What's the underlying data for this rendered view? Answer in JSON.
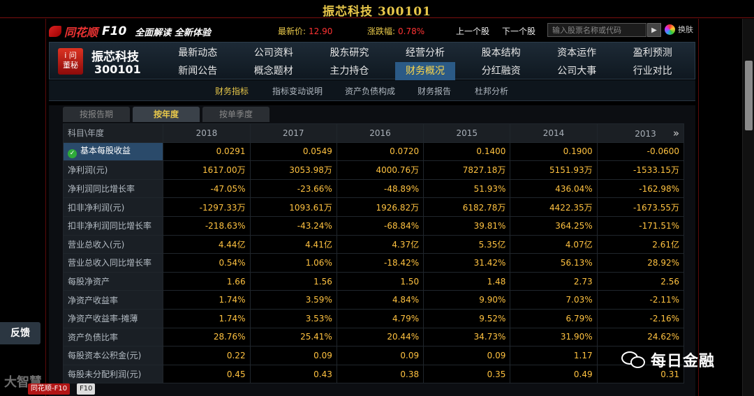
{
  "window": {
    "title": "振芯科技 300101"
  },
  "header": {
    "brand": "同花顺",
    "f10": "F10",
    "slogan": "全面解读 全新体验",
    "price_label": "最新价:",
    "price_value": "12.90",
    "change_label": "涨跌幅:",
    "change_value": "0.78%",
    "prev_stock": "上一个股",
    "next_stock": "下一个股",
    "search_placeholder": "输入股票名称或代码",
    "search_go": "▶",
    "skin_label": "换肤"
  },
  "stock": {
    "badge_line1": "i 问",
    "badge_line2": "董秘",
    "name": "振芯科技",
    "code": "300101"
  },
  "nav": {
    "row1": [
      "最新动态",
      "公司资料",
      "股东研究",
      "经营分析",
      "股本结构",
      "资本运作",
      "盈利预测"
    ],
    "row2": [
      "新闻公告",
      "概念题材",
      "主力持仓",
      "财务概况",
      "分红融资",
      "公司大事",
      "行业对比"
    ],
    "active": "财务概况"
  },
  "subnav": {
    "items": [
      "财务指标",
      "指标变动说明",
      "资产负债构成",
      "财务报告",
      "杜邦分析"
    ],
    "active": "财务指标"
  },
  "tabs": {
    "items": [
      "按报告期",
      "按年度",
      "按单季度"
    ],
    "active": "按年度"
  },
  "table": {
    "corner": "科目\\年度",
    "more": "»",
    "years": [
      "2018",
      "2017",
      "2016",
      "2015",
      "2014",
      "2013"
    ],
    "rows": [
      {
        "label": "基本每股收益",
        "values": [
          "0.0291",
          "0.0549",
          "0.0720",
          "0.1400",
          "0.1900",
          "-0.0600"
        ]
      },
      {
        "label": "净利润(元)",
        "values": [
          "1617.00万",
          "3053.98万",
          "4000.76万",
          "7827.18万",
          "5151.93万",
          "-1533.15万"
        ]
      },
      {
        "label": "净利润同比增长率",
        "values": [
          "-47.05%",
          "-23.66%",
          "-48.89%",
          "51.93%",
          "436.04%",
          "-162.98%"
        ]
      },
      {
        "label": "扣非净利润(元)",
        "values": [
          "-1297.33万",
          "1093.61万",
          "1926.82万",
          "6182.78万",
          "4422.35万",
          "-1673.55万"
        ]
      },
      {
        "label": "扣非净利润同比增长率",
        "values": [
          "-218.63%",
          "-43.24%",
          "-68.84%",
          "39.81%",
          "364.25%",
          "-171.51%"
        ]
      },
      {
        "label": "营业总收入(元)",
        "values": [
          "4.44亿",
          "4.41亿",
          "4.37亿",
          "5.35亿",
          "4.07亿",
          "2.61亿"
        ]
      },
      {
        "label": "营业总收入同比增长率",
        "values": [
          "0.54%",
          "1.06%",
          "-18.42%",
          "31.42%",
          "56.13%",
          "28.92%"
        ]
      },
      {
        "label": "每股净资产",
        "values": [
          "1.66",
          "1.56",
          "1.50",
          "1.48",
          "2.73",
          "2.56"
        ]
      },
      {
        "label": "净资产收益率",
        "values": [
          "1.74%",
          "3.59%",
          "4.84%",
          "9.90%",
          "7.03%",
          "-2.11%"
        ]
      },
      {
        "label": "净资产收益率-摊薄",
        "values": [
          "1.74%",
          "3.53%",
          "4.79%",
          "9.52%",
          "6.79%",
          "-2.16%"
        ]
      },
      {
        "label": "资产负债比率",
        "values": [
          "28.76%",
          "25.41%",
          "20.44%",
          "34.73%",
          "31.90%",
          "24.62%"
        ]
      },
      {
        "label": "每股资本公积金(元)",
        "values": [
          "0.22",
          "0.09",
          "0.09",
          "0.09",
          "1.17",
          ""
        ]
      },
      {
        "label": "每股未分配利润(元)",
        "values": [
          "0.45",
          "0.43",
          "0.38",
          "0.35",
          "0.49",
          "0.31"
        ]
      }
    ]
  },
  "overlay": {
    "feedback": "反馈",
    "wechat_name": "每日金融",
    "watermark": "大智慧",
    "taskbar_app": "同花顺-F10",
    "taskbar_page": "F10"
  },
  "colors": {
    "accent": "#e8c84a",
    "value": "#ffc240",
    "up": "#ff3333",
    "active_nav": "#2b5a86"
  }
}
